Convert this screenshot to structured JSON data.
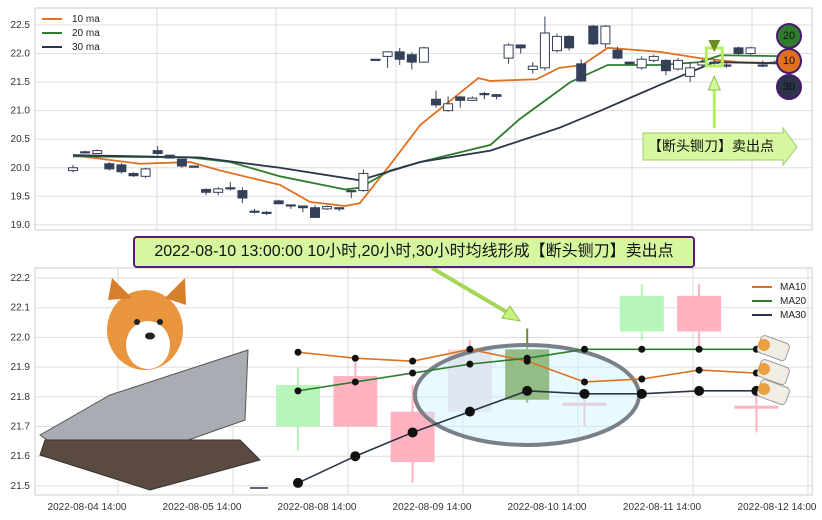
{
  "colors": {
    "ma10": "#e07020",
    "ma20": "#2e7d2e",
    "ma30": "#2b3448",
    "candle_down": "#344158",
    "bull": "#b8f5b8",
    "bear": "#ffb3c1",
    "highlight": "#6b8e23"
  },
  "chart_data": [
    {
      "type": "candlestick",
      "ylim": [
        19.0,
        22.6
      ],
      "yticks": [
        "19.0",
        "19.5",
        "20.0",
        "20.5",
        "21.0",
        "21.5",
        "22.0",
        "22.5"
      ],
      "grid": true,
      "legend": "top-left",
      "legend_entries": [
        "10 ma",
        "20 ma",
        "30 ma"
      ],
      "candles": [
        [
          19.95,
          20.0,
          20.05,
          19.92
        ],
        [
          20.28,
          20.28,
          20.3,
          20.26
        ],
        [
          20.25,
          20.3,
          20.32,
          20.24
        ],
        [
          20.07,
          19.98,
          20.1,
          19.95
        ],
        [
          20.05,
          19.93,
          20.08,
          19.9
        ],
        [
          19.9,
          19.86,
          19.92,
          19.84
        ],
        [
          19.85,
          19.98,
          20.0,
          19.82
        ],
        [
          20.3,
          20.25,
          20.38,
          20.22
        ],
        [
          20.22,
          20.17,
          20.23,
          20.16
        ],
        [
          20.15,
          20.03,
          20.16,
          20.0
        ],
        [
          20.03,
          20.03,
          20.04,
          20.02
        ],
        [
          19.62,
          19.57,
          19.64,
          19.52
        ],
        [
          19.57,
          19.63,
          19.66,
          19.52
        ],
        [
          19.65,
          19.65,
          19.75,
          19.6
        ],
        [
          19.6,
          19.47,
          19.66,
          19.38
        ],
        [
          19.24,
          19.24,
          19.28,
          19.2
        ],
        [
          19.22,
          19.22,
          19.24,
          19.17
        ],
        [
          19.42,
          19.37,
          19.44,
          19.36
        ],
        [
          19.35,
          19.35,
          19.36,
          19.28
        ],
        [
          19.33,
          19.3,
          19.34,
          19.22
        ],
        [
          19.3,
          19.13,
          19.34,
          19.12
        ],
        [
          19.28,
          19.32,
          19.34,
          19.26
        ],
        [
          19.3,
          19.3,
          19.31,
          19.24
        ],
        [
          19.6,
          19.58,
          19.61,
          19.47
        ],
        [
          19.6,
          19.9,
          19.97,
          19.58
        ],
        [
          21.9,
          21.9,
          21.9,
          21.9
        ],
        [
          21.95,
          22.03,
          22.04,
          21.75
        ],
        [
          22.03,
          21.9,
          22.1,
          21.8
        ],
        [
          21.98,
          21.85,
          22.02,
          21.72
        ],
        [
          21.85,
          22.1,
          22.12,
          21.84
        ],
        [
          21.2,
          21.1,
          21.35,
          21.05
        ],
        [
          21.0,
          21.12,
          21.25,
          20.98
        ],
        [
          21.24,
          21.18,
          21.26,
          21.05
        ],
        [
          21.18,
          21.22,
          21.25,
          21.17
        ],
        [
          21.3,
          21.3,
          21.33,
          21.2
        ],
        [
          21.28,
          21.25,
          21.29,
          21.2
        ],
        [
          21.92,
          22.15,
          22.18,
          21.82
        ],
        [
          22.15,
          22.1,
          22.16,
          22.0
        ],
        [
          21.72,
          21.78,
          21.85,
          21.65
        ],
        [
          21.75,
          22.36,
          22.65,
          21.7
        ],
        [
          22.05,
          22.3,
          22.35,
          22.02
        ],
        [
          22.3,
          22.1,
          22.32,
          22.05
        ],
        [
          21.82,
          21.52,
          21.9,
          21.5
        ],
        [
          22.48,
          22.17,
          22.5,
          22.15
        ],
        [
          22.17,
          22.48,
          22.5,
          22.1
        ],
        [
          22.06,
          21.92,
          22.12,
          21.9
        ],
        [
          21.85,
          21.82,
          21.86,
          21.8
        ],
        [
          21.75,
          21.9,
          21.95,
          21.72
        ],
        [
          21.88,
          21.95,
          21.98,
          21.85
        ],
        [
          21.88,
          21.7,
          21.9,
          21.62
        ],
        [
          21.73,
          21.88,
          21.92,
          21.7
        ],
        [
          21.6,
          21.75,
          21.85,
          21.5
        ],
        [
          21.8,
          21.85,
          21.9,
          21.78
        ],
        [
          21.85,
          21.85,
          21.9,
          21.8
        ],
        [
          21.8,
          21.8,
          21.86,
          21.75
        ],
        [
          22.1,
          22.0,
          22.12,
          21.98
        ],
        [
          22.0,
          22.1,
          22.12,
          21.98
        ],
        [
          21.8,
          21.8,
          21.88,
          21.76
        ],
        [
          21.85,
          21.85,
          21.88,
          21.82
        ]
      ],
      "ma": {
        "10 ma": [
          [
            0,
            20.22
          ],
          [
            5.5,
            20.07
          ],
          [
            9.7,
            20.1
          ],
          [
            12.2,
            19.95
          ],
          [
            17.1,
            19.7
          ],
          [
            19.6,
            19.4
          ],
          [
            22.5,
            19.33
          ],
          [
            23.7,
            19.38
          ],
          [
            26.2,
            20.05
          ],
          [
            28.7,
            20.75
          ],
          [
            33.5,
            21.57
          ],
          [
            34.5,
            21.52
          ],
          [
            38.3,
            21.55
          ],
          [
            40.2,
            21.75
          ],
          [
            42.1,
            21.8
          ],
          [
            44.2,
            22.1
          ],
          [
            48.5,
            22.03
          ],
          [
            51.8,
            21.92
          ],
          [
            55,
            21.85
          ],
          [
            60.1,
            21.82
          ]
        ],
        "20 ma": [
          [
            0,
            20.2
          ],
          [
            9.7,
            20.18
          ],
          [
            13,
            20.1
          ],
          [
            17.1,
            19.85
          ],
          [
            22.5,
            19.62
          ],
          [
            23.7,
            19.65
          ],
          [
            26.2,
            19.95
          ],
          [
            28.7,
            20.1
          ],
          [
            34.5,
            20.4
          ],
          [
            36.9,
            20.85
          ],
          [
            41.1,
            21.5
          ],
          [
            44.2,
            21.8
          ],
          [
            48.5,
            21.8
          ],
          [
            51.8,
            21.85
          ],
          [
            53.5,
            21.97
          ],
          [
            60.1,
            21.95
          ]
        ],
        "30 ma": [
          [
            0,
            20.22
          ],
          [
            10.5,
            20.18
          ],
          [
            17.1,
            20.0
          ],
          [
            23.7,
            19.78
          ],
          [
            28.7,
            20.1
          ],
          [
            34.5,
            20.3
          ],
          [
            40.2,
            20.7
          ],
          [
            43.6,
            21.0
          ],
          [
            48.5,
            21.45
          ],
          [
            53,
            21.85
          ],
          [
            60.1,
            21.82
          ]
        ]
      },
      "sell_index": 53,
      "badges": [
        "20",
        "10",
        "30"
      ],
      "annotation": "【断头铡刀】卖出点"
    },
    {
      "type": "candlestick",
      "ylim": [
        21.48,
        22.22
      ],
      "yticks": [
        "21.5",
        "21.6",
        "21.7",
        "21.8",
        "21.9",
        "22.0",
        "22.1",
        "22.2"
      ],
      "grid": true,
      "legend": "top-right",
      "xticks": [
        "2022-08-04 14:00",
        "2022-08-05 14:00",
        "2022-08-08 14:00",
        "2022-08-09 14:00",
        "2022-08-10 14:00",
        "2022-08-11 14:00",
        "2022-08-12 14:00"
      ],
      "legend_entries": [
        "MA10",
        "MA20",
        "MA30"
      ],
      "candles": [
        [
          21.7,
          21.84,
          21.9,
          21.62
        ],
        [
          21.87,
          21.7,
          21.93,
          21.7
        ],
        [
          21.75,
          21.58,
          21.84,
          21.51
        ],
        [
          21.96,
          21.75,
          21.99,
          21.74
        ],
        [
          21.79,
          21.96,
          22.03,
          21.78
        ],
        [
          21.78,
          21.78,
          21.79,
          21.7
        ],
        [
          22.02,
          22.14,
          22.18,
          21.99
        ],
        [
          22.14,
          22.02,
          22.18,
          21.97
        ],
        [
          21.77,
          21.77,
          21.81,
          21.68
        ]
      ],
      "ma": {
        "MA10": [
          21.95,
          21.93,
          21.92,
          21.96,
          21.92,
          21.85,
          21.86,
          21.89,
          21.88
        ],
        "MA20": [
          21.82,
          21.85,
          21.88,
          21.91,
          21.93,
          21.96,
          21.96,
          21.96,
          21.96
        ],
        "MA30": [
          21.51,
          21.6,
          21.68,
          21.75,
          21.82,
          21.81,
          21.81,
          21.82,
          21.82
        ]
      },
      "highlight_index": 4,
      "annotation": "2022-08-10 13:00:00 10小时,20小时,30小时均线形成【断头铡刀】卖出点"
    }
  ]
}
